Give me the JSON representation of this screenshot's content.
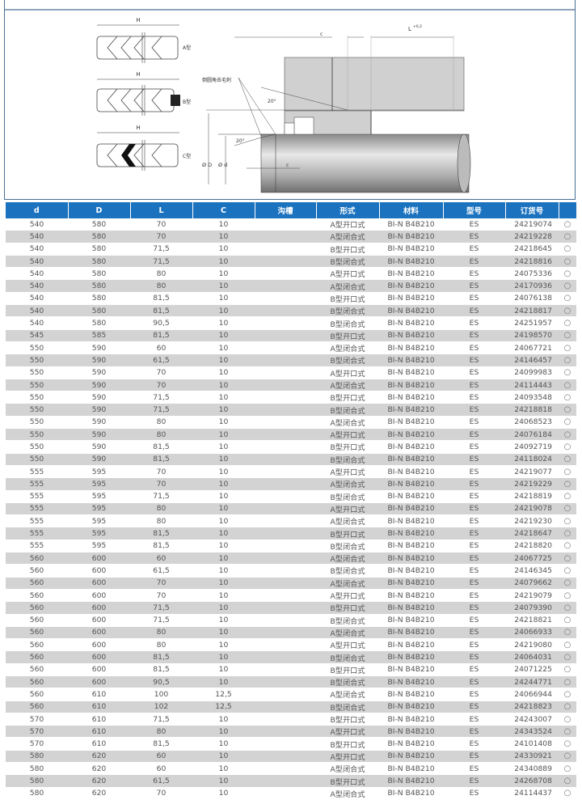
{
  "diagram": {
    "seal_types": [
      {
        "dimension": "H",
        "label": "A型"
      },
      {
        "dimension": "H",
        "label": "B型"
      },
      {
        "dimension": "H",
        "label": "C型"
      }
    ],
    "chamfer_note": "倒圆角去毛刺",
    "angle_top": "20°",
    "angle_bottom": "20°",
    "dim_c_top": "c",
    "dim_c_bottom": "c",
    "dim_L": "L",
    "dim_L_tolerance": "+0,2",
    "dim_D": "Ø D",
    "dim_d": "Ø d"
  },
  "table": {
    "headers": [
      "d",
      "D",
      "L",
      "C",
      "沟槽",
      "形式",
      "材料",
      "型号",
      "订货号",
      ""
    ],
    "rows": [
      [
        "540",
        "580",
        "70",
        "10",
        "",
        "A型开口式",
        "BI-N B4B210",
        "ES",
        "24219074",
        "○"
      ],
      [
        "540",
        "580",
        "70",
        "10",
        "",
        "A型闭合式",
        "BI-N B4B210",
        "ES",
        "24219228",
        "○"
      ],
      [
        "540",
        "580",
        "71,5",
        "10",
        "",
        "B型开口式",
        "BI-N B4B210",
        "ES",
        "24218645",
        "○"
      ],
      [
        "540",
        "580",
        "71,5",
        "10",
        "",
        "B型闭合式",
        "BI-N B4B210",
        "ES",
        "24218816",
        "○"
      ],
      [
        "540",
        "580",
        "80",
        "10",
        "",
        "A型开口式",
        "BI-N B4B210",
        "ES",
        "24075336",
        "○"
      ],
      [
        "540",
        "580",
        "80",
        "10",
        "",
        "A型闭合式",
        "BI-N B4B210",
        "ES",
        "24170936",
        "○"
      ],
      [
        "540",
        "580",
        "81,5",
        "10",
        "",
        "B型开口式",
        "BI-N B4B210",
        "ES",
        "24076138",
        "○"
      ],
      [
        "540",
        "580",
        "81,5",
        "10",
        "",
        "B型闭合式",
        "BI-N B4B210",
        "ES",
        "24218817",
        "○"
      ],
      [
        "540",
        "580",
        "90,5",
        "10",
        "",
        "B型闭合式",
        "BI-N B4B210",
        "ES",
        "24251957",
        "○"
      ],
      [
        "545",
        "585",
        "81,5",
        "10",
        "",
        "B型开口式",
        "BI-N B4B210",
        "ES",
        "24198570",
        "○"
      ],
      [
        "550",
        "590",
        "60",
        "10",
        "",
        "A型闭合式",
        "BI-N B4B210",
        "ES",
        "24067721",
        "○"
      ],
      [
        "550",
        "590",
        "61,5",
        "10",
        "",
        "B型闭合式",
        "BI-N B4B210",
        "ES",
        "24146457",
        "○"
      ],
      [
        "550",
        "590",
        "70",
        "10",
        "",
        "A型开口式",
        "BI-N B4B210",
        "ES",
        "24099983",
        "○"
      ],
      [
        "550",
        "590",
        "70",
        "10",
        "",
        "A型闭合式",
        "BI-N B4B210",
        "ES",
        "24114443",
        "○"
      ],
      [
        "550",
        "590",
        "71,5",
        "10",
        "",
        "B型开口式",
        "BI-N B4B210",
        "ES",
        "24093548",
        "○"
      ],
      [
        "550",
        "590",
        "71,5",
        "10",
        "",
        "B型闭合式",
        "BI-N B4B210",
        "ES",
        "24218818",
        "○"
      ],
      [
        "550",
        "590",
        "80",
        "10",
        "",
        "A型闭合式",
        "BI-N B4B210",
        "ES",
        "24068523",
        "○"
      ],
      [
        "550",
        "590",
        "80",
        "10",
        "",
        "A型开口式",
        "BI-N B4B210",
        "ES",
        "24076184",
        "○"
      ],
      [
        "550",
        "590",
        "81,5",
        "10",
        "",
        "B型开口式",
        "BI-N B4B210",
        "ES",
        "24092719",
        "○"
      ],
      [
        "550",
        "590",
        "81,5",
        "10",
        "",
        "B型闭合式",
        "BI-N B4B210",
        "ES",
        "24118024",
        "○"
      ],
      [
        "555",
        "595",
        "70",
        "10",
        "",
        "A型开口式",
        "BI-N B4B210",
        "ES",
        "24219077",
        "○"
      ],
      [
        "555",
        "595",
        "70",
        "10",
        "",
        "A型闭合式",
        "BI-N B4B210",
        "ES",
        "24219229",
        "○"
      ],
      [
        "555",
        "595",
        "71,5",
        "10",
        "",
        "B型闭合式",
        "BI-N B4B210",
        "ES",
        "24218819",
        "○"
      ],
      [
        "555",
        "595",
        "80",
        "10",
        "",
        "A型开口式",
        "BI-N B4B210",
        "ES",
        "24219078",
        "○"
      ],
      [
        "555",
        "595",
        "80",
        "10",
        "",
        "A型闭合式",
        "BI-N B4B210",
        "ES",
        "24219230",
        "○"
      ],
      [
        "555",
        "595",
        "81,5",
        "10",
        "",
        "B型开口式",
        "BI-N B4B210",
        "ES",
        "24218647",
        "○"
      ],
      [
        "555",
        "595",
        "81,5",
        "10",
        "",
        "B型闭合式",
        "BI-N B4B210",
        "ES",
        "24218820",
        "○"
      ],
      [
        "560",
        "600",
        "60",
        "10",
        "",
        "A型闭合式",
        "BI-N B4B210",
        "ES",
        "24067725",
        "○"
      ],
      [
        "560",
        "600",
        "61,5",
        "10",
        "",
        "B型闭合式",
        "BI-N B4B210",
        "ES",
        "24146345",
        "○"
      ],
      [
        "560",
        "600",
        "70",
        "10",
        "",
        "A型闭合式",
        "BI-N B4B210",
        "ES",
        "24079662",
        "○"
      ],
      [
        "560",
        "600",
        "70",
        "10",
        "",
        "A型开口式",
        "BI-N B4B210",
        "ES",
        "24219079",
        "○"
      ],
      [
        "560",
        "600",
        "71,5",
        "10",
        "",
        "B型开口式",
        "BI-N B4B210",
        "ES",
        "24079390",
        "○"
      ],
      [
        "560",
        "600",
        "71,5",
        "10",
        "",
        "B型闭合式",
        "BI-N B4B210",
        "ES",
        "24218821",
        "○"
      ],
      [
        "560",
        "600",
        "80",
        "10",
        "",
        "A型闭合式",
        "BI-N B4B210",
        "ES",
        "24066933",
        "○"
      ],
      [
        "560",
        "600",
        "80",
        "10",
        "",
        "A型开口式",
        "BI-N B4B210",
        "ES",
        "24219080",
        "○"
      ],
      [
        "560",
        "600",
        "81,5",
        "10",
        "",
        "B型闭合式",
        "BI-N B4B210",
        "ES",
        "24064031",
        "○"
      ],
      [
        "560",
        "600",
        "81,5",
        "10",
        "",
        "B型开口式",
        "BI-N B4B210",
        "ES",
        "24071225",
        "○"
      ],
      [
        "560",
        "600",
        "90,5",
        "10",
        "",
        "B型闭合式",
        "BI-N B4B210",
        "ES",
        "24244771",
        "○"
      ],
      [
        "560",
        "610",
        "100",
        "12,5",
        "",
        "A型闭合式",
        "BI-N B4B210",
        "ES",
        "24066944",
        "○"
      ],
      [
        "560",
        "610",
        "102",
        "12,5",
        "",
        "B型闭合式",
        "BI-N B4B210",
        "ES",
        "24218823",
        "○"
      ],
      [
        "570",
        "610",
        "71,5",
        "10",
        "",
        "B型开口式",
        "BI-N B4B210",
        "ES",
        "24243007",
        "○"
      ],
      [
        "570",
        "610",
        "80",
        "10",
        "",
        "A型开口式",
        "BI-N B4B210",
        "ES",
        "24343524",
        "○"
      ],
      [
        "570",
        "610",
        "81,5",
        "10",
        "",
        "B型开口式",
        "BI-N B4B210",
        "ES",
        "24101408",
        "○"
      ],
      [
        "580",
        "620",
        "60",
        "10",
        "",
        "A型开口式",
        "BI-N B4B210",
        "ES",
        "24330921",
        "○"
      ],
      [
        "580",
        "620",
        "60",
        "10",
        "",
        "A型闭合式",
        "BI-N B4B210",
        "ES",
        "24340889",
        "○"
      ],
      [
        "580",
        "620",
        "61,5",
        "10",
        "",
        "B型开口式",
        "BI-N B4B210",
        "ES",
        "24268708",
        "○"
      ],
      [
        "580",
        "620",
        "70",
        "10",
        "",
        "A型闭合式",
        "BI-N B4B210",
        "ES",
        "24114437",
        "○"
      ]
    ]
  }
}
